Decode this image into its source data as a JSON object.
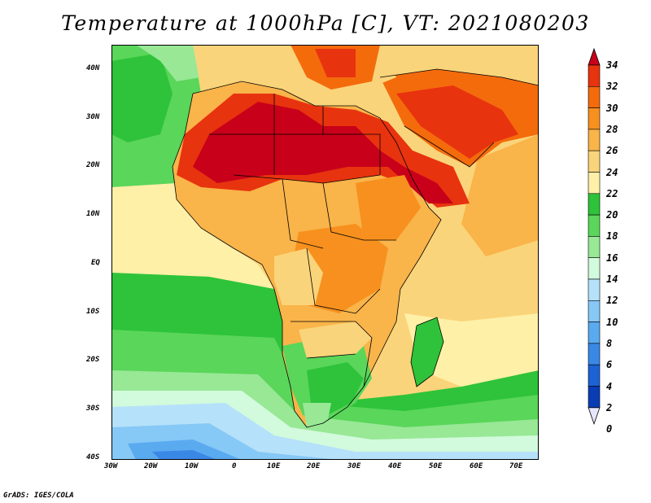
{
  "title": "Temperature at 1000hPa [C], VT: 2021080203",
  "credit": "GrADS: IGES/COLA",
  "y_labels": [
    "40N",
    "30N",
    "20N",
    "10N",
    "EQ",
    "10S",
    "20S",
    "30S",
    "40S"
  ],
  "x_labels": [
    "30W",
    "20W",
    "10W",
    "0",
    "10E",
    "20E",
    "30E",
    "40E",
    "50E",
    "60E",
    "70E"
  ],
  "colorbar": {
    "levels": [
      "34",
      "32",
      "30",
      "28",
      "26",
      "24",
      "22",
      "20",
      "18",
      "16",
      "14",
      "12",
      "10",
      "8",
      "6",
      "4",
      "2",
      "0"
    ],
    "colors": [
      "#c8001a",
      "#e8330f",
      "#f46b0c",
      "#f7901e",
      "#f9b44a",
      "#fad47a",
      "#fff0a8",
      "#2ec33a",
      "#5ad65a",
      "#98e896",
      "#d2fadc",
      "#b6e1fa",
      "#86c8f6",
      "#5aaaf0",
      "#3a88e6",
      "#1c62d4",
      "#0a3cb4",
      "#08146e"
    ]
  }
}
